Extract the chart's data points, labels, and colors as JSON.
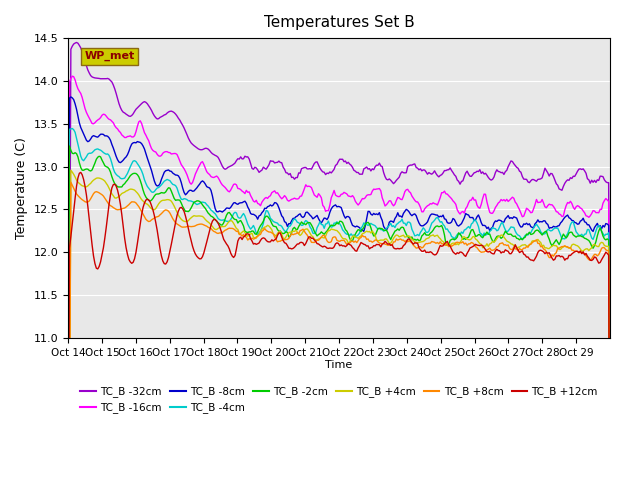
{
  "title": "Temperatures Set B",
  "xlabel": "Time",
  "ylabel": "Temperature (C)",
  "ylim": [
    11.0,
    14.5
  ],
  "yticks": [
    11.0,
    11.5,
    12.0,
    12.5,
    13.0,
    13.5,
    14.0,
    14.5
  ],
  "x_labels": [
    "Oct 14",
    "Oct 15",
    "Oct 16",
    "Oct 17",
    "Oct 18",
    "Oct 19",
    "Oct 20",
    "Oct 21",
    "Oct 22",
    "Oct 23",
    "Oct 24",
    "Oct 25",
    "Oct 26",
    "Oct 27",
    "Oct 28",
    "Oct 29"
  ],
  "series": [
    {
      "label": "TC_B -32cm",
      "color": "#9900cc"
    },
    {
      "label": "TC_B -16cm",
      "color": "#ff00ff"
    },
    {
      "label": "TC_B -8cm",
      "color": "#0000cc"
    },
    {
      "label": "TC_B -4cm",
      "color": "#00cccc"
    },
    {
      "label": "TC_B -2cm",
      "color": "#00cc00"
    },
    {
      "label": "TC_B +4cm",
      "color": "#cccc00"
    },
    {
      "label": "TC_B +8cm",
      "color": "#ff8800"
    },
    {
      "label": "TC_B +12cm",
      "color": "#cc0000"
    }
  ],
  "legend_box_color": "#cccc00",
  "legend_box_text": "WP_met",
  "legend_box_text_color": "#8b0000",
  "background_color": "#e8e8e8",
  "figsize": [
    6.4,
    4.8
  ],
  "dpi": 100
}
